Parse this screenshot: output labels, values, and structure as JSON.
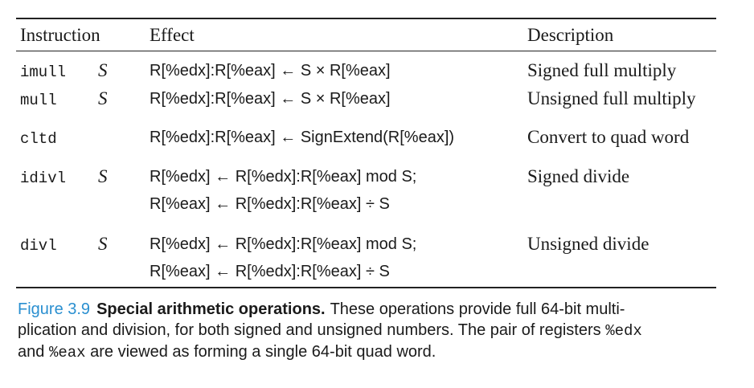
{
  "table": {
    "headers": {
      "instruction": "Instruction",
      "effect": "Effect",
      "description": "Description"
    },
    "rows": [
      {
        "instruction": "imull",
        "operand": "S",
        "effect_lines": [
          "R[%edx]:R[%eax] ← S × R[%eax]"
        ],
        "description": "Signed full multiply"
      },
      {
        "instruction": "mull",
        "operand": "S",
        "effect_lines": [
          "R[%edx]:R[%eax] ← S × R[%eax]"
        ],
        "description": "Unsigned full multiply"
      },
      {
        "instruction": "cltd",
        "operand": "",
        "effect_lines": [
          "R[%edx]:R[%eax] ← SignExtend(R[%eax])"
        ],
        "description": "Convert to quad word"
      },
      {
        "instruction": "idivl",
        "operand": "S",
        "effect_lines": [
          "R[%edx] ← R[%edx]:R[%eax] mod S;",
          "R[%eax] ← R[%edx]:R[%eax] ÷ S"
        ],
        "description": "Signed divide"
      },
      {
        "instruction": "divl",
        "operand": "S",
        "effect_lines": [
          "R[%edx] ← R[%edx]:R[%eax] mod S;",
          "R[%eax] ← R[%edx]:R[%eax] ÷ S"
        ],
        "description": "Unsigned divide"
      }
    ]
  },
  "caption": {
    "label": "Figure 3.9",
    "title": "Special arithmetic operations.",
    "line1_text": "These operations provide full 64-bit multi-",
    "line2_text": "plication and division, for both signed and unsigned numbers. The pair of registers",
    "line2_code": "%edx",
    "line3_prefix": "and",
    "line3_code": "%eax",
    "line3_text": "are viewed as forming a single 64-bit quad word."
  },
  "colors": {
    "figure_label": "#2a8fd0",
    "rule": "#222222"
  }
}
